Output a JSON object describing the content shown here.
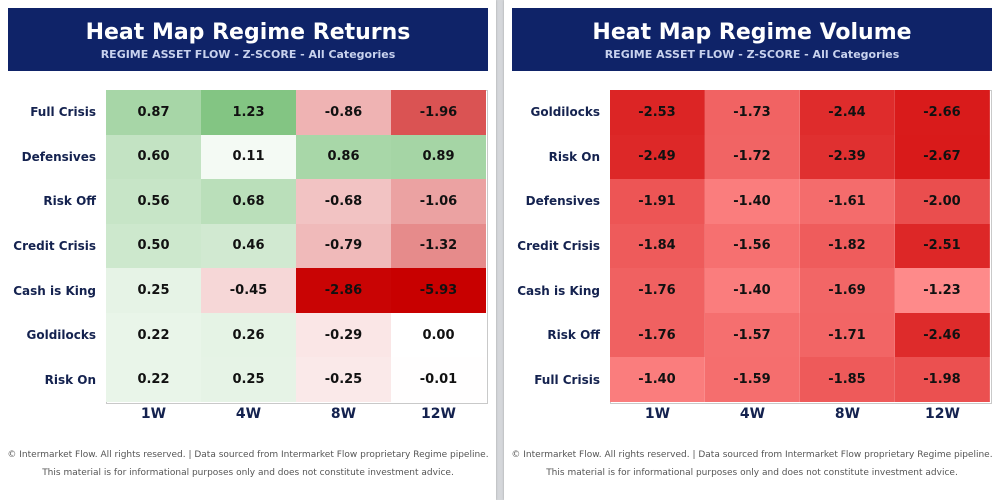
{
  "chart_data": [
    {
      "type": "heatmap",
      "title": "Heat Map Regime Returns",
      "subtitle": "REGIME ASSET FLOW  -  Z-SCORE  -  All Categories",
      "columns": [
        "1W",
        "4W",
        "8W",
        "12W"
      ],
      "rows": [
        "Full Crisis",
        "Defensives",
        "Risk Off",
        "Credit Crisis",
        "Cash is King",
        "Goldilocks",
        "Risk On"
      ],
      "values": [
        [
          0.87,
          1.23,
          -0.86,
          -1.96
        ],
        [
          0.6,
          0.11,
          0.86,
          0.89
        ],
        [
          0.56,
          0.68,
          -0.68,
          -1.06
        ],
        [
          0.5,
          0.46,
          -0.79,
          -1.32
        ],
        [
          0.25,
          -0.45,
          -2.86,
          -5.93
        ],
        [
          0.22,
          0.26,
          -0.29,
          0.0
        ],
        [
          0.22,
          0.25,
          -0.25,
          -0.01
        ]
      ],
      "value_labels": [
        [
          "0.87",
          "1.23",
          "-0.86",
          "-1.96"
        ],
        [
          "0.60",
          "0.11",
          "0.86",
          "0.89"
        ],
        [
          "0.56",
          "0.68",
          "-0.68",
          "-1.06"
        ],
        [
          "0.50",
          "0.46",
          "-0.79",
          "-1.32"
        ],
        [
          "0.25",
          "-0.45",
          "-2.86",
          "-5.93"
        ],
        [
          "0.22",
          "0.26",
          "-0.29",
          "0.00"
        ],
        [
          "0.22",
          "0.25",
          "-0.25",
          "-0.01"
        ]
      ],
      "colormap": {
        "negative": "#c80000",
        "neutral": "#ffffff",
        "positive": "#7cc27c"
      }
    },
    {
      "type": "heatmap",
      "title": "Heat Map Regime Volume",
      "subtitle": "REGIME ASSET FLOW  -  Z-SCORE  -  All Categories",
      "columns": [
        "1W",
        "4W",
        "8W",
        "12W"
      ],
      "rows": [
        "Goldilocks",
        "Risk On",
        "Defensives",
        "Credit Crisis",
        "Cash is King",
        "Risk Off",
        "Full Crisis"
      ],
      "values": [
        [
          -2.53,
          -1.73,
          -2.44,
          -2.66
        ],
        [
          -2.49,
          -1.72,
          -2.39,
          -2.67
        ],
        [
          -1.91,
          -1.4,
          -1.61,
          -2.0
        ],
        [
          -1.84,
          -1.56,
          -1.82,
          -2.51
        ],
        [
          -1.76,
          -1.4,
          -1.69,
          -1.23
        ],
        [
          -1.76,
          -1.57,
          -1.71,
          -2.46
        ],
        [
          -1.4,
          -1.59,
          -1.85,
          -1.98
        ]
      ],
      "value_labels": [
        [
          "-2.53",
          "-1.73",
          "-2.44",
          "-2.66"
        ],
        [
          "-2.49",
          "-1.72",
          "-2.39",
          "-2.67"
        ],
        [
          "-1.91",
          "-1.40",
          "-1.61",
          "-2.00"
        ],
        [
          "-1.84",
          "-1.56",
          "-1.82",
          "-2.51"
        ],
        [
          "-1.76",
          "-1.40",
          "-1.69",
          "-1.23"
        ],
        [
          "-1.76",
          "-1.57",
          "-1.71",
          "-2.46"
        ],
        [
          "-1.40",
          "-1.59",
          "-1.85",
          "-1.98"
        ]
      ],
      "colormap": {
        "dark": "#d81818",
        "light": "#ff8c8c"
      }
    }
  ],
  "footer": {
    "line1": "© Intermarket Flow. All rights reserved.   |   Data sourced from Intermarket Flow proprietary Regime pipeline.",
    "line2": "This material is for informational purposes only and does not constitute investment advice."
  },
  "colors": {
    "banner": "#0f2368",
    "label": "#14224f"
  }
}
